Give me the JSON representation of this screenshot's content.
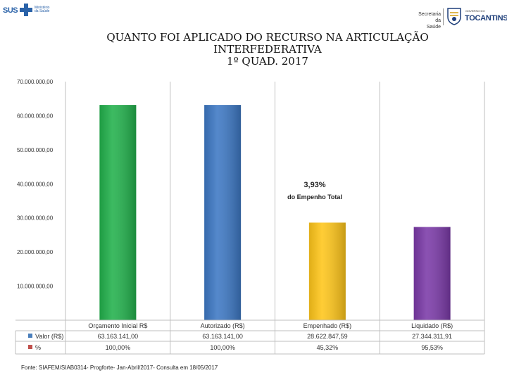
{
  "header": {
    "left_logo": {
      "sus_text": "SUS",
      "ministry_line1": "Ministério",
      "ministry_line2": "da Saúde",
      "cross_color": "#2a62a8"
    },
    "right_logo": {
      "secretaria_line1": "Secretaria da",
      "secretaria_line2": "Saúde",
      "state_small": "GOVERNO DO",
      "state_name": "TOCANTINS",
      "brand_color": "#1f3f7a"
    }
  },
  "title": {
    "line1": "QUANTO FOI APLICADO DO RECURSO NA ARTICULAÇÃO",
    "line2": "INTERFEDERATIVA",
    "line3": "1º QUAD. 2017"
  },
  "chart_data": {
    "type": "bar",
    "categories": [
      "Orçamento Inicial R$",
      "Autorizado (R$)",
      "Empenhado (R$)",
      "Liquidado (R$)"
    ],
    "series": [
      {
        "name": "Valor (R$)",
        "values": [
          63163141.0,
          63163141.0,
          28622847.59,
          27344311.91
        ],
        "labels": [
          "63.163.141,00",
          "63.163.141,00",
          "28.622.847,59",
          "27.344.311,91"
        ],
        "color": "#4a7ebb"
      },
      {
        "name": "%",
        "values": [
          100.0,
          100.0,
          45.32,
          95.53
        ],
        "labels": [
          "100,00%",
          "100,00%",
          "45,32%",
          "95,53%"
        ],
        "color": "#c0504d"
      }
    ],
    "bar_colors": [
      "#22b14c",
      "#3d78c4",
      "#ffc61a",
      "#7b3aa8"
    ],
    "ylim": [
      0,
      70000000
    ],
    "yticks": [
      10000000,
      20000000,
      30000000,
      40000000,
      50000000,
      60000000,
      70000000
    ],
    "ytick_labels": [
      "10.000.000,00",
      "20.000.000,00",
      "30.000.000,00",
      "40.000.000,00",
      "50.000.000,00",
      "60.000.000,00",
      "70.000.000,00"
    ],
    "annotation": {
      "value": "3,93%",
      "text": "do Empenho Total"
    },
    "grid": false,
    "legend": "data-table"
  },
  "footer": {
    "source": "Fonte: SIAFEM/SIAB0314- Progforte- Jan-Abril/2017- Consulta em 18/05/2017"
  }
}
